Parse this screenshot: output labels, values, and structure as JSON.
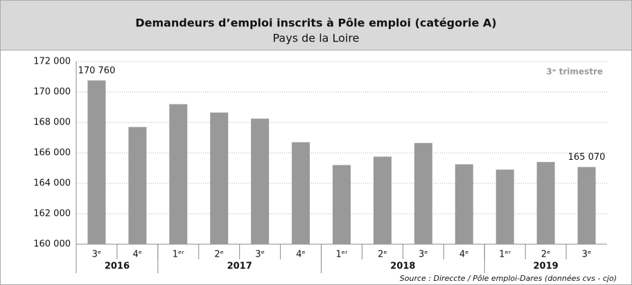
{
  "chart_data": {
    "type": "bar",
    "title": "Demandeurs d’emploi inscrits à Pôle emploi (catégorie A)",
    "subtitle": "Pays de la Loire",
    "annotation": "3ᵉ trimestre",
    "source": "Source : Direccte / Pôle emploi-Dares (données cvs - cjo)",
    "categories": [
      "3ᵉ",
      "4ᵉ",
      "1ᵉʳ",
      "2ᵉ",
      "3ᵉ",
      "4ᵉ",
      "1ᵉʳ",
      "2ᵉ",
      "3ᵉ",
      "4ᵉ",
      "1ᵉʳ",
      "2ᵉ",
      "3ᵉ"
    ],
    "groups": [
      {
        "name": "2016",
        "span": 2
      },
      {
        "name": "2017",
        "span": 4
      },
      {
        "name": "2018",
        "span": 4
      },
      {
        "name": "2019",
        "span": 3
      }
    ],
    "values": [
      170760,
      167700,
      169200,
      168650,
      168250,
      166700,
      165200,
      165750,
      166650,
      165250,
      164900,
      165400,
      165070
    ],
    "value_labels": [
      "170 760",
      null,
      null,
      null,
      null,
      null,
      null,
      null,
      null,
      null,
      null,
      null,
      "165 070"
    ],
    "color": "#999999",
    "ylim": [
      160000,
      172000
    ],
    "yticks": [
      {
        "value": 160000,
        "label": "160 000"
      },
      {
        "value": 162000,
        "label": "162 000"
      },
      {
        "value": 164000,
        "label": "164 000"
      },
      {
        "value": 166000,
        "label": "166 000"
      },
      {
        "value": 168000,
        "label": "168 000"
      },
      {
        "value": 170000,
        "label": "170 000"
      },
      {
        "value": 172000,
        "label": "172 000"
      }
    ],
    "grid": true
  }
}
